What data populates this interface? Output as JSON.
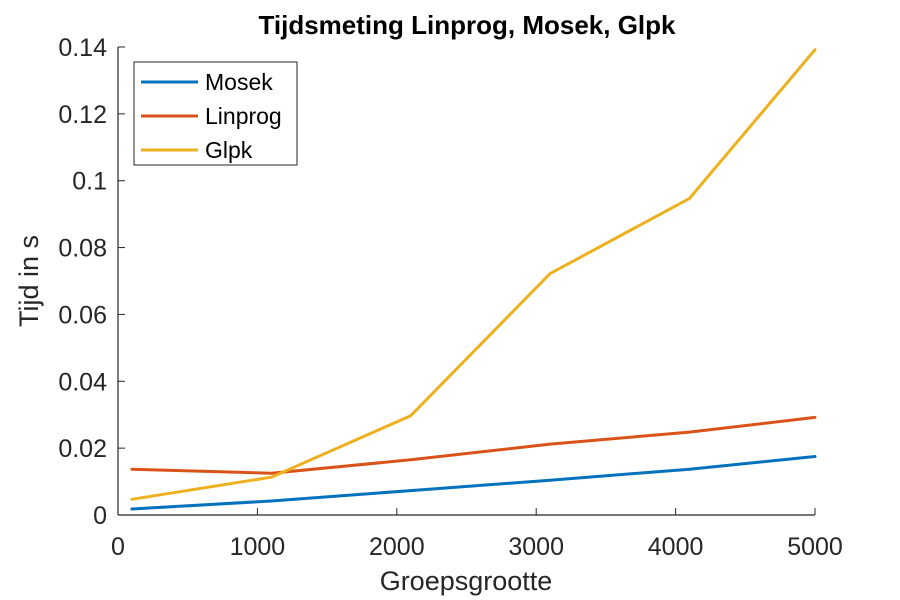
{
  "chart_data": {
    "type": "line",
    "title": "Tijdsmeting Linprog, Mosek, Glpk",
    "xlabel": "Groepsgrootte",
    "ylabel": "Tijd in s",
    "xlim": [
      0,
      5000
    ],
    "ylim": [
      0,
      0.14
    ],
    "x_ticks": [
      0,
      1000,
      2000,
      3000,
      4000,
      5000
    ],
    "x_tick_labels": [
      "0",
      "1000",
      "2000",
      "3000",
      "4000",
      "5000"
    ],
    "y_ticks": [
      0,
      0.02,
      0.04,
      0.06,
      0.08,
      0.1,
      0.12,
      0.14
    ],
    "y_tick_labels": [
      "0",
      "0.02",
      "0.04",
      "0.06",
      "0.08",
      "0.1",
      "0.12",
      "0.14"
    ],
    "grid": false,
    "legend_position": "top-left",
    "x": [
      100,
      1100,
      2100,
      3100,
      4100,
      5000
    ],
    "series": [
      {
        "name": "Mosek",
        "color": "#0072BD",
        "values": [
          0.0018,
          0.0042,
          0.0073,
          0.0104,
          0.0137,
          0.0175
        ]
      },
      {
        "name": "Linprog",
        "color": "#D95319",
        "values": [
          0.0137,
          0.0125,
          0.0165,
          0.0212,
          0.0248,
          0.0292
        ]
      },
      {
        "name": "Glpk",
        "color": "#EDB120",
        "values": [
          0.0047,
          0.0113,
          0.0297,
          0.0722,
          0.0947,
          0.1392
        ]
      }
    ]
  }
}
